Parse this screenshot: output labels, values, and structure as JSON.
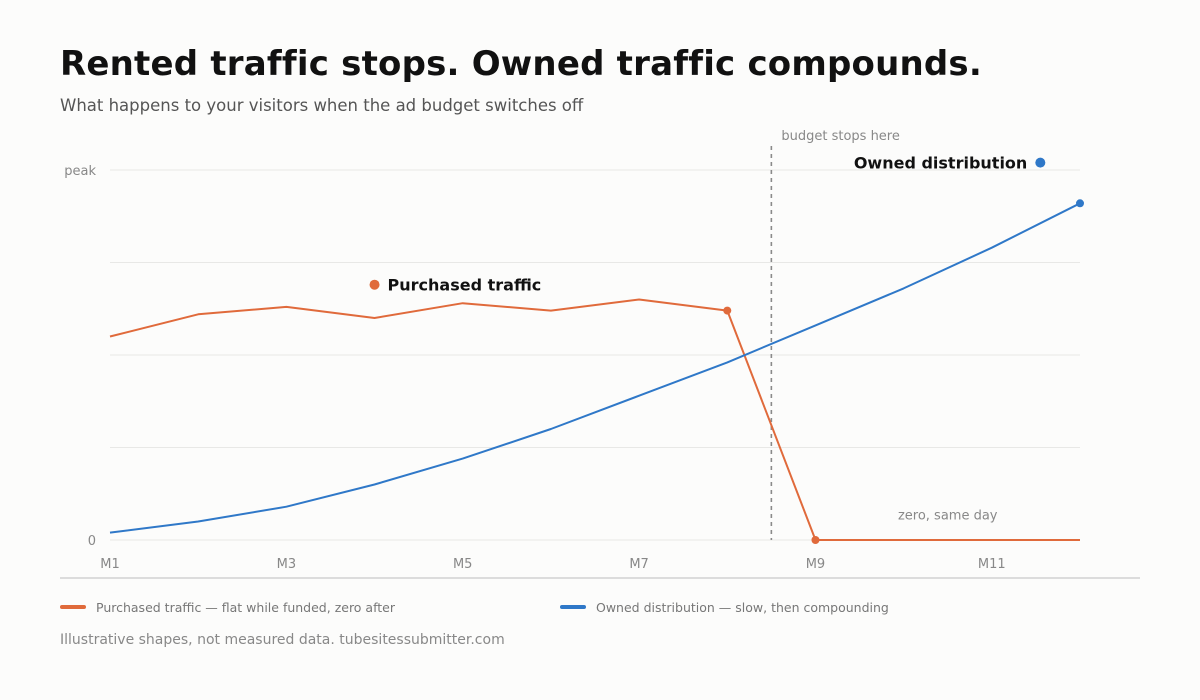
{
  "title": "Rented traffic stops. Owned traffic compounds.",
  "subtitle": "What happens to your visitors when the ad budget switches off",
  "chart_data": {
    "type": "line",
    "x": [
      1,
      2,
      3,
      4,
      5,
      6,
      7,
      8,
      9,
      10,
      11,
      12
    ],
    "xtick_values": [
      1,
      3,
      5,
      7,
      9,
      11
    ],
    "xtick_labels": [
      "M1",
      "M3",
      "M5",
      "M7",
      "M9",
      "M11"
    ],
    "xlim": [
      1,
      12
    ],
    "ylim": [
      0,
      1
    ],
    "ytick_values": [
      0,
      1
    ],
    "ytick_labels": [
      "0",
      "peak"
    ],
    "grid_values": [
      0.25,
      0.5,
      0.75
    ],
    "grid": true,
    "series": [
      {
        "name": "Purchased traffic",
        "color": "#e06a3b",
        "x": [
          1,
          2,
          3,
          4,
          5,
          6,
          7,
          8,
          9,
          12
        ],
        "values": [
          0.55,
          0.61,
          0.63,
          0.6,
          0.64,
          0.62,
          0.65,
          0.62,
          0.0,
          0.0
        ],
        "label_at": [
          4,
          0.69
        ],
        "label_marker_at": [
          4,
          0.69
        ]
      },
      {
        "name": "Owned distribution",
        "color": "#2f78c8",
        "x": [
          1,
          2,
          3,
          4,
          5,
          6,
          7,
          8,
          9,
          10,
          11,
          12
        ],
        "values": [
          0.02,
          0.05,
          0.09,
          0.15,
          0.22,
          0.3,
          0.39,
          0.48,
          0.58,
          0.68,
          0.79,
          0.91
        ],
        "label_at": [
          11.55,
          1.02
        ],
        "label_marker_at": [
          11.55,
          1.02
        ]
      }
    ],
    "annotations": [
      {
        "text": "budget stops here",
        "type": "vline",
        "x": 8.5
      },
      {
        "text": "zero, same day",
        "x": 10.5,
        "y": 0.05
      }
    ],
    "legend": {
      "placement": "bottom",
      "items": [
        {
          "text": "Purchased traffic — flat while funded, zero after",
          "color": "#e06a3b"
        },
        {
          "text": "Owned distribution — slow, then compounding",
          "color": "#2f78c8"
        }
      ]
    }
  },
  "footnote": "Illustrative shapes, not measured data. tubesitessubmitter.com"
}
